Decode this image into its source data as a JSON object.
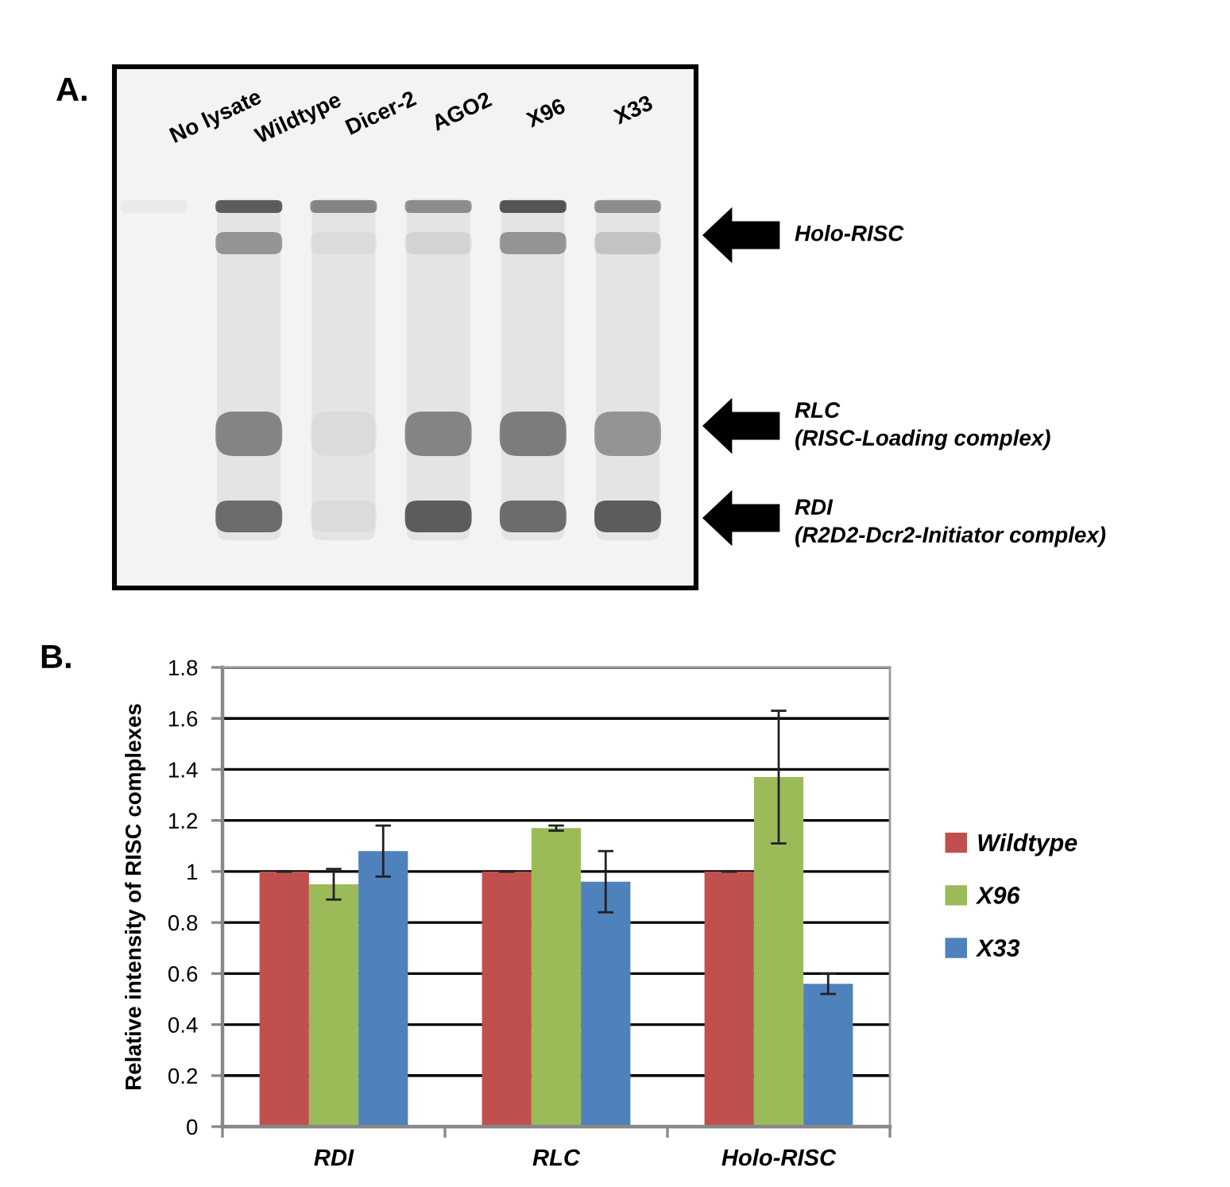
{
  "chart_data": [
    {
      "type": "other",
      "title": "A.",
      "categories": [
        "No lysate",
        "Wildtype",
        "Dicer-2",
        "AGO2",
        "X96",
        "X33"
      ],
      "annotations": [
        "Holo-RISC",
        "RLC\n(RISC-Loading complex)",
        "RDI\n(R2D2-Dcr2-Initiator complex)"
      ]
    },
    {
      "type": "bar",
      "title": "B.",
      "ylabel": "Relative intensity of RISC complexes",
      "categories": [
        "RDI",
        "RLC",
        "Holo-RISC"
      ],
      "series": [
        {
          "name": "Wildtype",
          "color": "#c0504d",
          "values": [
            1,
            1,
            1
          ],
          "errors": [
            0,
            0,
            0
          ]
        },
        {
          "name": "X96",
          "color": "#9bbb59",
          "values": [
            0.95,
            1.17,
            1.37
          ],
          "errors": [
            0.06,
            0.01,
            0.26
          ]
        },
        {
          "name": "X33",
          "color": "#4f81bd",
          "values": [
            1.08,
            0.96,
            0.56
          ],
          "errors": [
            0.1,
            0.12,
            0.04
          ]
        }
      ],
      "ylim": [
        0,
        1.8
      ],
      "yticks": [
        0,
        0.2,
        0.4,
        0.6,
        0.8,
        1,
        1.2,
        1.4,
        1.6,
        1.8
      ],
      "grid": "y",
      "legend": "right"
    }
  ]
}
